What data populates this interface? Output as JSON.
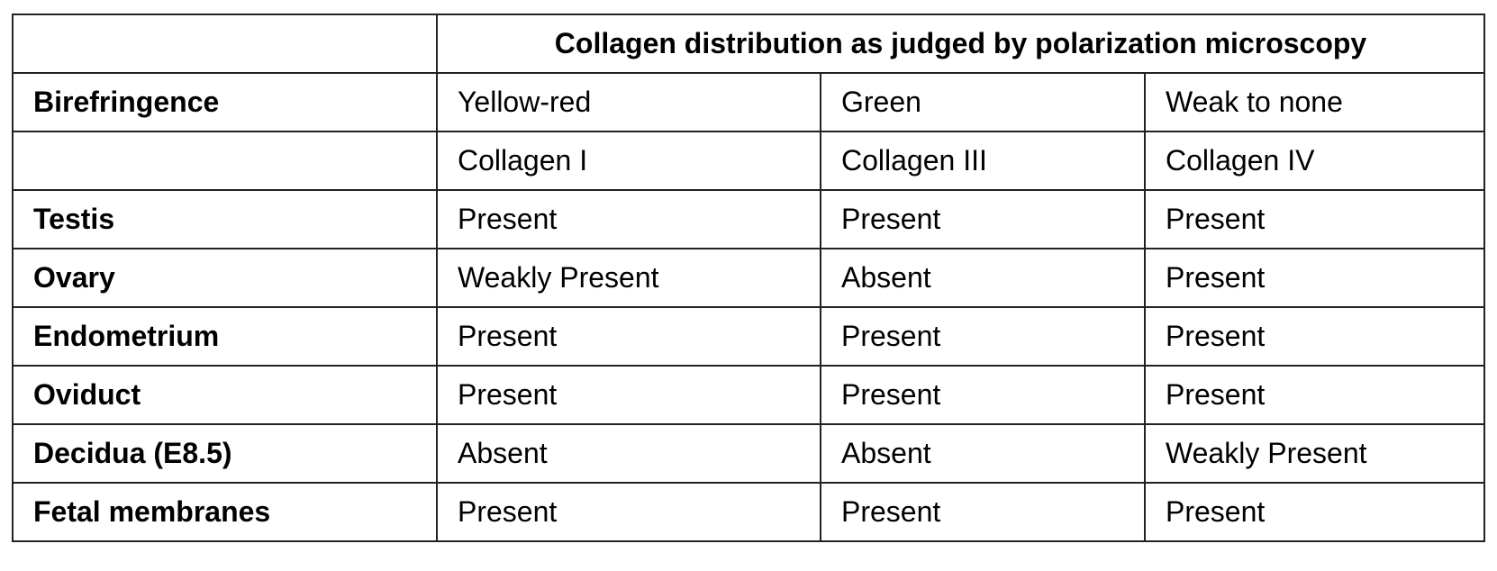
{
  "table": {
    "header": {
      "title": "Collagen distribution as judged by polarization microscopy"
    },
    "rows": [
      {
        "label": "Birefringence",
        "cells": [
          "Yellow-red",
          "Green",
          "Weak to none"
        ]
      },
      {
        "cells": [
          "Collagen I",
          "Collagen III",
          "Collagen IV"
        ]
      },
      {
        "label": "Testis",
        "cells": [
          "Present",
          "Present",
          "Present"
        ]
      },
      {
        "label": "Ovary",
        "cells": [
          "Weakly Present",
          "Absent",
          "Present"
        ]
      },
      {
        "label": "Endometrium",
        "cells": [
          "Present",
          "Present",
          "Present"
        ]
      },
      {
        "label": "Oviduct",
        "cells": [
          "Present",
          "Present",
          "Present"
        ]
      },
      {
        "label": "Decidua (E8.5)",
        "cells": [
          "Absent",
          "Absent",
          "Weakly Present"
        ]
      },
      {
        "label": "Fetal membranes",
        "cells": [
          "Present",
          "Present",
          "Present"
        ]
      }
    ]
  }
}
